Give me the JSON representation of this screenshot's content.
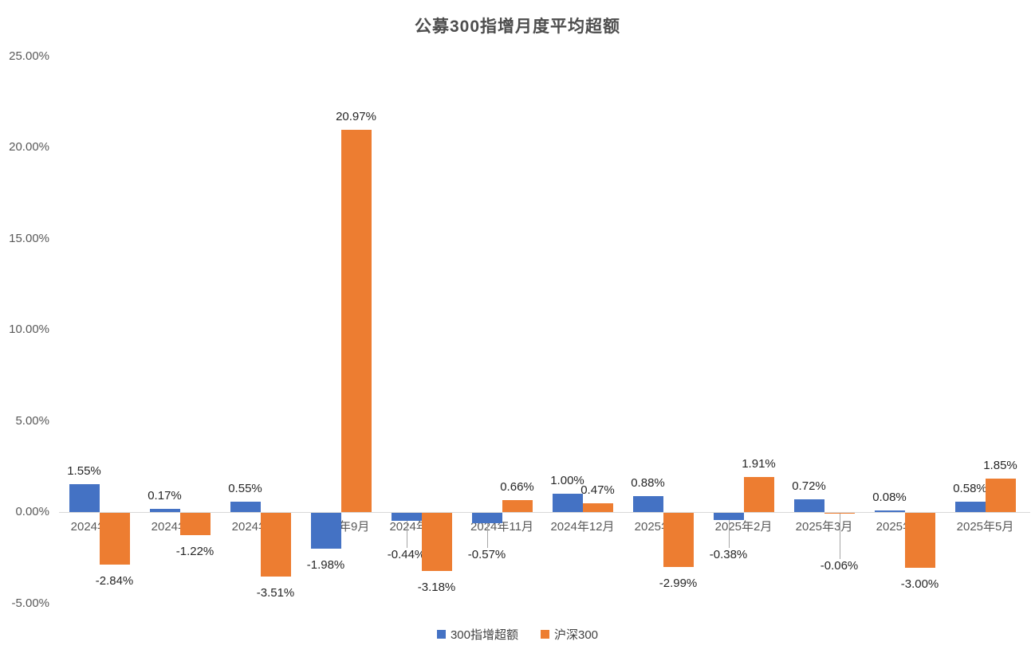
{
  "chart_data": {
    "type": "bar",
    "title": "公募300指增月度平均超额",
    "categories": [
      "2024年6月",
      "2024年7月",
      "2024年8月",
      "2024年9月",
      "2024年10月",
      "2024年11月",
      "2024年12月",
      "2025年1月",
      "2025年2月",
      "2025年3月",
      "2025年4月",
      "2025年5月"
    ],
    "series": [
      {
        "name": "300指增超额",
        "color": "#4472C4",
        "values": [
          1.55,
          0.17,
          0.55,
          -1.98,
          -0.44,
          -0.57,
          1.0,
          0.88,
          -0.38,
          0.72,
          0.08,
          0.58
        ]
      },
      {
        "name": "沪深300",
        "color": "#ED7D31",
        "values": [
          -2.84,
          -1.22,
          -3.51,
          20.97,
          -3.18,
          0.66,
          0.47,
          -2.99,
          1.91,
          -0.06,
          -3.0,
          1.85
        ]
      }
    ],
    "data_labels": {
      "series_0": [
        "1.55%",
        "0.17%",
        "0.55%",
        "-1.98%",
        "-0.44%",
        "-0.57%",
        "1.00%",
        "0.88%",
        "-0.38%",
        "0.72%",
        "0.08%",
        "0.58%"
      ],
      "series_1": [
        "-2.84%",
        "-1.22%",
        "-3.51%",
        "20.97%",
        "-3.18%",
        "0.66%",
        "0.47%",
        "-2.99%",
        "1.91%",
        "-0.06%",
        "-3.00%",
        "1.85%"
      ]
    },
    "y_axis": {
      "min": -5,
      "max": 25,
      "step": 5,
      "ticks": [
        "25.00%",
        "20.00%",
        "15.00%",
        "10.00%",
        "5.00%",
        "0.00%",
        "-5.00%"
      ],
      "tick_values": [
        25,
        20,
        15,
        10,
        5,
        0,
        -5
      ]
    },
    "grid": false,
    "legend_position": "bottom",
    "axis_line_color": "#d9d9d9"
  }
}
